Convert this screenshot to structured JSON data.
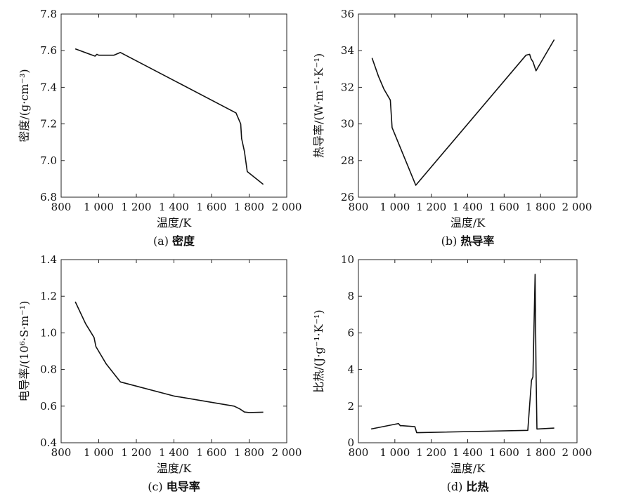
{
  "chart_data": [
    {
      "type": "line",
      "caption_letter": "(a)",
      "caption_title": "密度",
      "xlabel": "温度/K",
      "ylabel": "密度/(g·cm⁻³)",
      "xlim": [
        800,
        2000
      ],
      "ylim": [
        6.8,
        7.8
      ],
      "xticks": [
        800,
        1000,
        1200,
        1400,
        1600,
        1800,
        2000
      ],
      "xtick_labels": [
        "800",
        "1 000",
        "1 200",
        "1 400",
        "1 600",
        "1 800",
        "2 000"
      ],
      "yticks": [
        6.8,
        7.0,
        7.2,
        7.4,
        7.6,
        7.8
      ],
      "ytick_labels": [
        "6.8",
        "7.0",
        "7.2",
        "7.4",
        "7.6",
        "7.8"
      ],
      "series": [
        {
          "x": [
            875,
            980,
            990,
            1000,
            1010,
            1080,
            1115,
            1730,
            1755,
            1760,
            1775,
            1790,
            1875
          ],
          "y": [
            7.61,
            7.57,
            7.58,
            7.575,
            7.575,
            7.575,
            7.59,
            7.26,
            7.2,
            7.12,
            7.05,
            6.94,
            6.87
          ]
        }
      ]
    },
    {
      "type": "line",
      "caption_letter": "(b)",
      "caption_title": "热导率",
      "xlabel": "温度/K",
      "ylabel": "热导率/(W·m⁻¹·K⁻¹)",
      "xlim": [
        800,
        2000
      ],
      "ylim": [
        26,
        36
      ],
      "xticks": [
        800,
        1000,
        1200,
        1400,
        1600,
        1800,
        2000
      ],
      "xtick_labels": [
        "800",
        "1 000",
        "1 200",
        "1 400",
        "1 600",
        "1 800",
        "2 000"
      ],
      "yticks": [
        26,
        28,
        30,
        32,
        34,
        36
      ],
      "ytick_labels": [
        "26",
        "28",
        "30",
        "32",
        "34",
        "36"
      ],
      "series": [
        {
          "x": [
            875,
            910,
            940,
            975,
            985,
            1115,
            1720,
            1740,
            1748,
            1758,
            1775,
            1875
          ],
          "y": [
            33.6,
            32.6,
            31.9,
            31.3,
            29.8,
            26.65,
            33.75,
            33.8,
            33.55,
            33.4,
            32.9,
            34.6
          ]
        }
      ]
    },
    {
      "type": "line",
      "caption_letter": "(c)",
      "caption_title": "电导率",
      "xlabel": "温度/K",
      "ylabel": "电导率/(10⁶·S·m⁻¹)",
      "xlim": [
        800,
        2000
      ],
      "ylim": [
        0.4,
        1.4
      ],
      "xticks": [
        800,
        1000,
        1200,
        1400,
        1600,
        1800,
        2000
      ],
      "xtick_labels": [
        "800",
        "1 000",
        "1 200",
        "1 400",
        "1 600",
        "1 800",
        "2 000"
      ],
      "yticks": [
        0.4,
        0.6,
        0.8,
        1.0,
        1.2,
        1.4
      ],
      "ytick_labels": [
        "0.4",
        "0.6",
        "0.8",
        "1.0",
        "1.2",
        "1.4"
      ],
      "series": [
        {
          "x": [
            875,
            930,
            975,
            985,
            1040,
            1115,
            1400,
            1720,
            1750,
            1775,
            1800,
            1875
          ],
          "y": [
            1.17,
            1.05,
            0.975,
            0.925,
            0.83,
            0.732,
            0.655,
            0.6,
            0.585,
            0.568,
            0.565,
            0.567
          ]
        }
      ]
    },
    {
      "type": "line",
      "caption_letter": "(d)",
      "caption_title": "比热",
      "xlabel": "温度/K",
      "ylabel": "比热/(J·g⁻¹·K⁻¹)",
      "xlim": [
        800,
        2000
      ],
      "ylim": [
        0,
        10
      ],
      "xticks": [
        800,
        1000,
        1200,
        1400,
        1600,
        1800,
        2000
      ],
      "xtick_labels": [
        "800",
        "1 000",
        "1 200",
        "1 400",
        "1 600",
        "1 800",
        "2 000"
      ],
      "yticks": [
        0,
        2,
        4,
        6,
        8,
        10
      ],
      "ytick_labels": [
        "0",
        "2",
        "4",
        "6",
        "8",
        "10"
      ],
      "series": [
        {
          "x": [
            870,
            1020,
            1030,
            1040,
            1110,
            1120,
            1130,
            1730,
            1750,
            1758,
            1770,
            1775,
            1780,
            1875
          ],
          "y": [
            0.75,
            1.05,
            0.93,
            0.93,
            0.88,
            0.55,
            0.55,
            0.68,
            3.4,
            3.6,
            9.2,
            4.0,
            0.75,
            0.8
          ]
        }
      ]
    }
  ]
}
